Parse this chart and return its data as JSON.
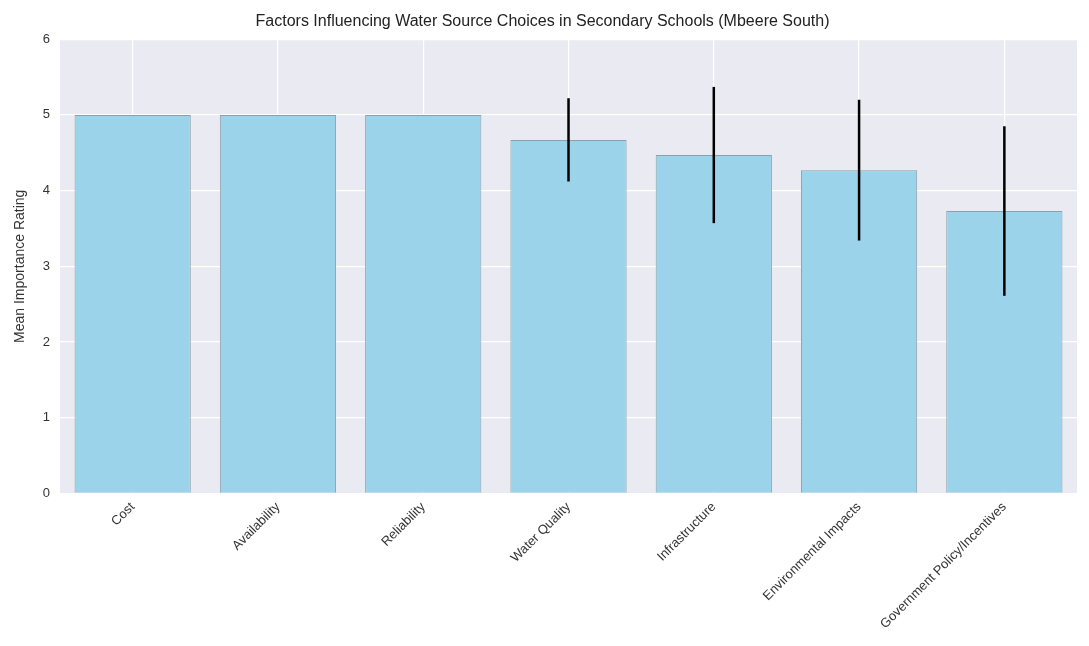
{
  "chart_data": {
    "type": "bar",
    "title": "Factors Influencing Water Source Choices in Secondary Schools (Mbeere South)",
    "ylabel": "Mean Importance Rating",
    "categories": [
      "Cost",
      "Availability",
      "Reliability",
      "Water Quality",
      "Infrastructure",
      "Environmental Impacts",
      "Government Policy/Incentives"
    ],
    "values": [
      5,
      5,
      5,
      4.67,
      4.47,
      4.27,
      3.73
    ],
    "errors": [
      null,
      null,
      null,
      0.55,
      0.9,
      0.93,
      1.12
    ],
    "color": "#9ad3ea",
    "ylim": [
      0,
      6
    ],
    "yticks": [
      0,
      1,
      2,
      3,
      4,
      5,
      6
    ],
    "grid": true
  }
}
